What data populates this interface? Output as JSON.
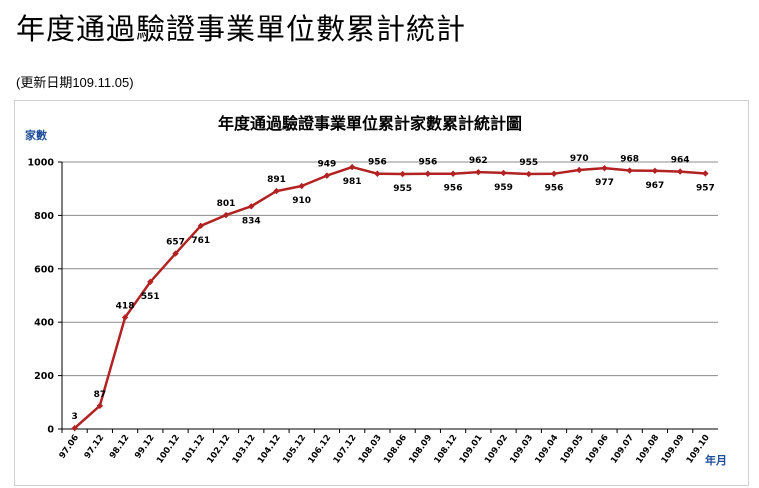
{
  "page": {
    "title": "年度通過驗證事業單位數累計統計",
    "update_date": "(更新日期109.11.05)"
  },
  "colors": {
    "series": "#b22222",
    "grid": "#8c8c8c",
    "axis_unit": "#1f4e9a"
  },
  "chart_data": {
    "type": "line",
    "title": "年度通過驗證事業單位累計家數累計統計圖",
    "ylabel": "家數",
    "xlabel": "年月",
    "ylim": [
      0,
      1000
    ],
    "yticks": [
      0,
      200,
      400,
      600,
      800,
      1000
    ],
    "grid": true,
    "categories": [
      "97.06",
      "97.12",
      "98.12",
      "99.12",
      "100.12",
      "101.12",
      "102.12",
      "103.12",
      "104.12",
      "105.12",
      "106.12",
      "107.12",
      "108.03",
      "108.06",
      "108.09",
      "108.12",
      "109.01",
      "109.02",
      "109.03",
      "109.04",
      "109.05",
      "109.06",
      "109.07",
      "109.08",
      "109.09",
      "109.10"
    ],
    "series": [
      {
        "values": [
          3,
          87,
          418,
          551,
          657,
          761,
          801,
          834,
          891,
          910,
          949,
          981,
          956,
          955,
          956,
          956,
          962,
          959,
          955,
          956,
          970,
          977,
          968,
          967,
          964,
          957
        ],
        "label_position": [
          "above",
          "above",
          "above",
          "below",
          "above",
          "below",
          "above",
          "below",
          "above",
          "below",
          "above",
          "below",
          "above",
          "below",
          "above",
          "below",
          "above",
          "below",
          "above",
          "below",
          "above",
          "below",
          "above",
          "below",
          "above",
          "below"
        ]
      }
    ]
  }
}
